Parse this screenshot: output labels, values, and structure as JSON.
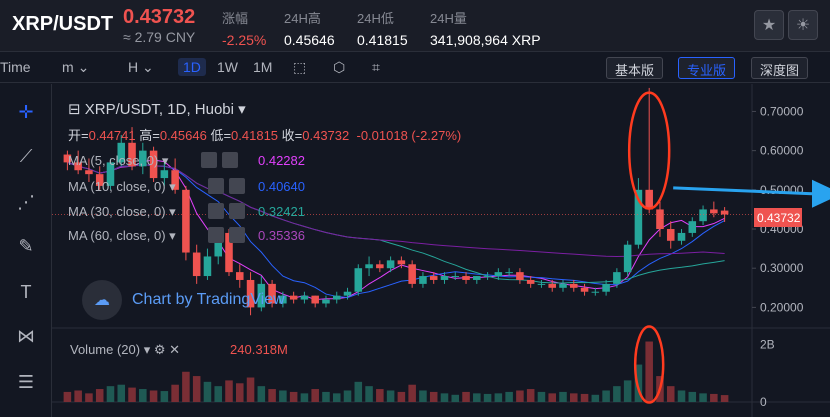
{
  "header": {
    "pair": "XRP/USDT",
    "price": "0.43732",
    "cny": "≈ 2.79 CNY",
    "stats": [
      {
        "label": "涨幅",
        "value": "-2.25%",
        "red": true
      },
      {
        "label": "24H高",
        "value": "0.45646"
      },
      {
        "label": "24H低",
        "value": "0.41815"
      },
      {
        "label": "24H量",
        "value": "341,908,964 XRP"
      }
    ]
  },
  "toolbar": {
    "time": "Time",
    "m": "m",
    "H": "H",
    "d1": "1D",
    "w1": "1W",
    "mo1": "1M",
    "basic": "基本版",
    "pro": "专业版",
    "depth": "深度图"
  },
  "chart": {
    "title": "XRP/USDT, 1D, Huobi",
    "ohlc": {
      "open_l": "开=",
      "open": "0.44741",
      "high_l": "高=",
      "high": "0.45646",
      "low_l": "低=",
      "low": "0.41815",
      "close_l": "收=",
      "close": "0.43732",
      "change": "-0.01018 (-2.27%)"
    },
    "mas": [
      {
        "label": "MA (5, close, 0)",
        "value": "0.42282",
        "color": "#e040fb"
      },
      {
        "label": "MA (10, close, 0)",
        "value": "0.40640",
        "color": "#2962ff"
      },
      {
        "label": "MA (30, close, 0)",
        "value": "0.32421",
        "color": "#26a69a"
      },
      {
        "label": "MA (60, close, 0)",
        "value": "0.35336",
        "color": "#9c27b0"
      }
    ],
    "volume": {
      "label": "Volume (20)",
      "value": "240.318M"
    },
    "watermark": "Chart by TradingView",
    "price_tag": "0.43732"
  },
  "chart_data": {
    "type": "candlestick",
    "y_ticks": [
      "0.70000",
      "0.60000",
      "0.50000",
      "0.40000",
      "0.30000",
      "0.20000"
    ],
    "vol_ticks": [
      "2B",
      "0"
    ],
    "ylim": [
      0.15,
      0.77
    ],
    "candles": [
      [
        0.59,
        0.6,
        0.55,
        0.57
      ],
      [
        0.57,
        0.6,
        0.54,
        0.55
      ],
      [
        0.55,
        0.58,
        0.52,
        0.54
      ],
      [
        0.54,
        0.56,
        0.5,
        0.51
      ],
      [
        0.51,
        0.58,
        0.5,
        0.57
      ],
      [
        0.57,
        0.64,
        0.56,
        0.62
      ],
      [
        0.62,
        0.66,
        0.55,
        0.56
      ],
      [
        0.56,
        0.62,
        0.54,
        0.6
      ],
      [
        0.6,
        0.61,
        0.52,
        0.53
      ],
      [
        0.53,
        0.57,
        0.51,
        0.55
      ],
      [
        0.55,
        0.58,
        0.49,
        0.5
      ],
      [
        0.5,
        0.51,
        0.32,
        0.34
      ],
      [
        0.34,
        0.36,
        0.26,
        0.28
      ],
      [
        0.28,
        0.35,
        0.27,
        0.33
      ],
      [
        0.33,
        0.4,
        0.31,
        0.39
      ],
      [
        0.39,
        0.4,
        0.28,
        0.29
      ],
      [
        0.29,
        0.31,
        0.25,
        0.27
      ],
      [
        0.27,
        0.29,
        0.18,
        0.2
      ],
      [
        0.2,
        0.28,
        0.19,
        0.26
      ],
      [
        0.26,
        0.27,
        0.2,
        0.21
      ],
      [
        0.21,
        0.24,
        0.2,
        0.23
      ],
      [
        0.23,
        0.24,
        0.21,
        0.22
      ],
      [
        0.22,
        0.24,
        0.21,
        0.23
      ],
      [
        0.23,
        0.23,
        0.2,
        0.21
      ],
      [
        0.21,
        0.23,
        0.2,
        0.22
      ],
      [
        0.22,
        0.24,
        0.21,
        0.23
      ],
      [
        0.23,
        0.25,
        0.22,
        0.24
      ],
      [
        0.24,
        0.31,
        0.23,
        0.3
      ],
      [
        0.3,
        0.33,
        0.28,
        0.31
      ],
      [
        0.31,
        0.32,
        0.29,
        0.3
      ],
      [
        0.3,
        0.33,
        0.29,
        0.32
      ],
      [
        0.32,
        0.33,
        0.3,
        0.31
      ],
      [
        0.31,
        0.32,
        0.25,
        0.26
      ],
      [
        0.26,
        0.29,
        0.25,
        0.28
      ],
      [
        0.28,
        0.29,
        0.26,
        0.27
      ],
      [
        0.27,
        0.29,
        0.26,
        0.28
      ],
      [
        0.28,
        0.29,
        0.27,
        0.28
      ],
      [
        0.28,
        0.29,
        0.26,
        0.27
      ],
      [
        0.27,
        0.28,
        0.26,
        0.28
      ],
      [
        0.28,
        0.29,
        0.27,
        0.28
      ],
      [
        0.28,
        0.3,
        0.27,
        0.29
      ],
      [
        0.29,
        0.3,
        0.28,
        0.29
      ],
      [
        0.29,
        0.3,
        0.26,
        0.27
      ],
      [
        0.27,
        0.28,
        0.25,
        0.26
      ],
      [
        0.26,
        0.27,
        0.25,
        0.26
      ],
      [
        0.26,
        0.27,
        0.24,
        0.25
      ],
      [
        0.25,
        0.27,
        0.24,
        0.26
      ],
      [
        0.26,
        0.27,
        0.24,
        0.25
      ],
      [
        0.25,
        0.26,
        0.23,
        0.24
      ],
      [
        0.24,
        0.25,
        0.23,
        0.24
      ],
      [
        0.24,
        0.27,
        0.23,
        0.26
      ],
      [
        0.26,
        0.3,
        0.25,
        0.29
      ],
      [
        0.29,
        0.37,
        0.28,
        0.36
      ],
      [
        0.36,
        0.53,
        0.35,
        0.5
      ],
      [
        0.5,
        0.76,
        0.44,
        0.45
      ],
      [
        0.45,
        0.47,
        0.38,
        0.4
      ],
      [
        0.4,
        0.42,
        0.35,
        0.37
      ],
      [
        0.37,
        0.4,
        0.36,
        0.39
      ],
      [
        0.39,
        0.43,
        0.38,
        0.42
      ],
      [
        0.42,
        0.46,
        0.41,
        0.45
      ],
      [
        0.45,
        0.47,
        0.43,
        0.44
      ],
      [
        0.447,
        0.456,
        0.418,
        0.437
      ]
    ],
    "volumes": [
      0.35,
      0.4,
      0.3,
      0.45,
      0.55,
      0.6,
      0.5,
      0.45,
      0.4,
      0.38,
      0.6,
      1.05,
      0.9,
      0.7,
      0.55,
      0.75,
      0.65,
      0.85,
      0.55,
      0.45,
      0.4,
      0.35,
      0.3,
      0.45,
      0.35,
      0.3,
      0.4,
      0.7,
      0.55,
      0.45,
      0.4,
      0.35,
      0.6,
      0.4,
      0.35,
      0.3,
      0.25,
      0.35,
      0.3,
      0.28,
      0.3,
      0.35,
      0.4,
      0.45,
      0.35,
      0.3,
      0.35,
      0.3,
      0.28,
      0.25,
      0.4,
      0.55,
      0.75,
      1.3,
      2.1,
      0.9,
      0.55,
      0.4,
      0.35,
      0.3,
      0.28,
      0.24
    ]
  }
}
